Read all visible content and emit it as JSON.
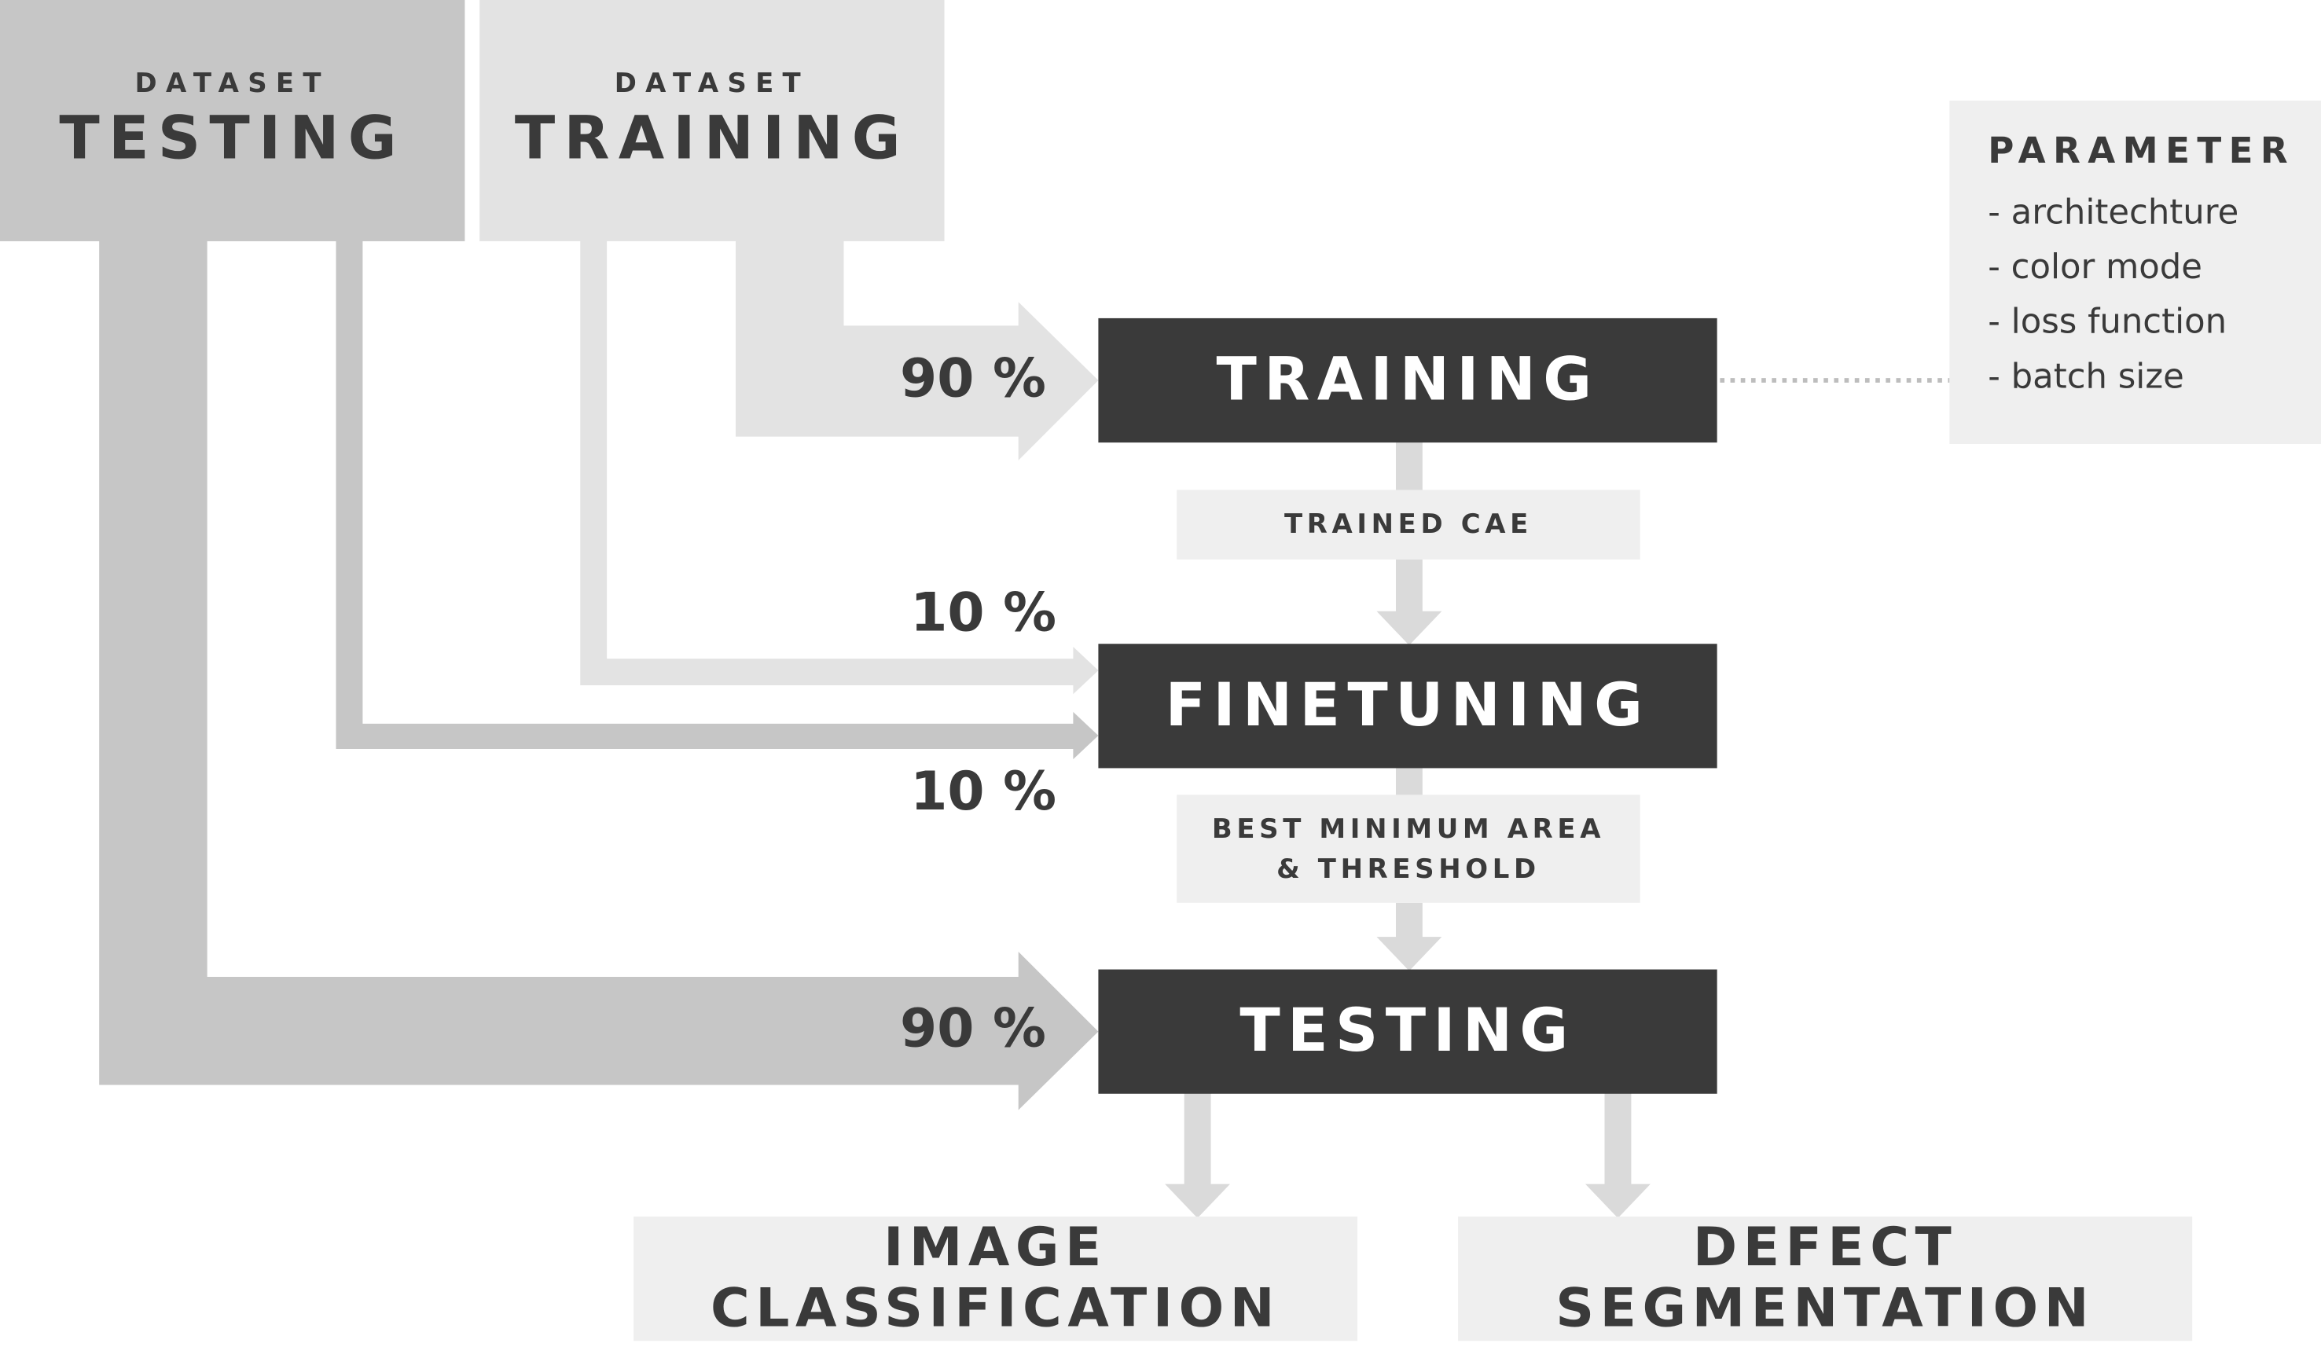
{
  "colors": {
    "dark": "#3a3a3a",
    "testing_dataset": "#c6c6c6",
    "training_dataset": "#e3e3e3",
    "light_box": "#efefef",
    "arrow_light": "#dadada"
  },
  "datasets": {
    "testing": {
      "small": "DATASET",
      "big": "TESTING"
    },
    "training": {
      "small": "DATASET",
      "big": "TRAINING"
    }
  },
  "stages": {
    "training": "TRAINING",
    "finetuning": "FINETUNING",
    "testing": "TESTING"
  },
  "intermediate": {
    "trained_cae": "TRAINED CAE",
    "best_min_area_line1": "BEST MINIMUM AREA",
    "best_min_area_line2": "& THRESHOLD"
  },
  "percentages": {
    "training_to_training": "90 %",
    "training_to_finetuning": "10 %",
    "testing_to_finetuning": "10 %",
    "testing_to_testing": "90 %"
  },
  "outputs": {
    "image_classification": "IMAGE CLASSIFICATION",
    "defect_segmentation": "DEFECT SEGMENTATION"
  },
  "parameter": {
    "title": "PARAMETER",
    "items": [
      "- architechture",
      "- color mode",
      "- loss function",
      "- batch size"
    ]
  }
}
